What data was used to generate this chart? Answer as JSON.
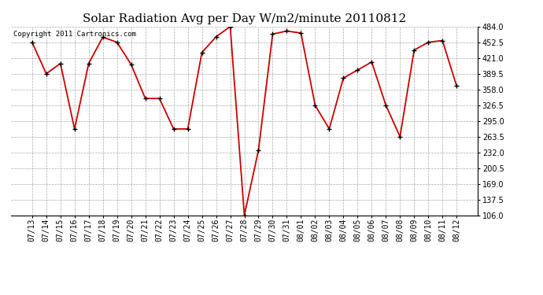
{
  "title": "Solar Radiation Avg per Day W/m2/minute 20110812",
  "copyright": "Copyright 2011 Cartronics.com",
  "dates": [
    "07/13",
    "07/14",
    "07/15",
    "07/16",
    "07/17",
    "07/18",
    "07/19",
    "07/20",
    "07/21",
    "07/22",
    "07/23",
    "07/24",
    "07/25",
    "07/26",
    "07/27",
    "07/28",
    "07/29",
    "07/30",
    "07/31",
    "08/01",
    "08/02",
    "08/03",
    "08/04",
    "08/05",
    "08/06",
    "08/07",
    "08/08",
    "08/09",
    "08/10",
    "08/11",
    "08/12"
  ],
  "values": [
    452.5,
    389.5,
    410.0,
    279.0,
    410.0,
    463.0,
    452.5,
    408.0,
    340.0,
    340.0,
    279.0,
    279.0,
    432.0,
    463.5,
    484.0,
    106.0,
    237.0,
    469.0,
    475.0,
    471.0,
    326.5,
    279.0,
    381.0,
    397.0,
    413.0,
    326.5,
    263.5,
    437.0,
    452.5,
    456.0,
    365.0
  ],
  "line_color": "#cc0000",
  "marker_color": "#000000",
  "bg_color": "#ffffff",
  "grid_color": "#aaaaaa",
  "ylim_min": 106.0,
  "ylim_max": 484.0,
  "yticks": [
    106.0,
    137.5,
    169.0,
    200.5,
    232.0,
    263.5,
    295.0,
    326.5,
    358.0,
    389.5,
    421.0,
    452.5,
    484.0
  ],
  "title_fontsize": 11,
  "copyright_fontsize": 6.5,
  "tick_fontsize": 7
}
